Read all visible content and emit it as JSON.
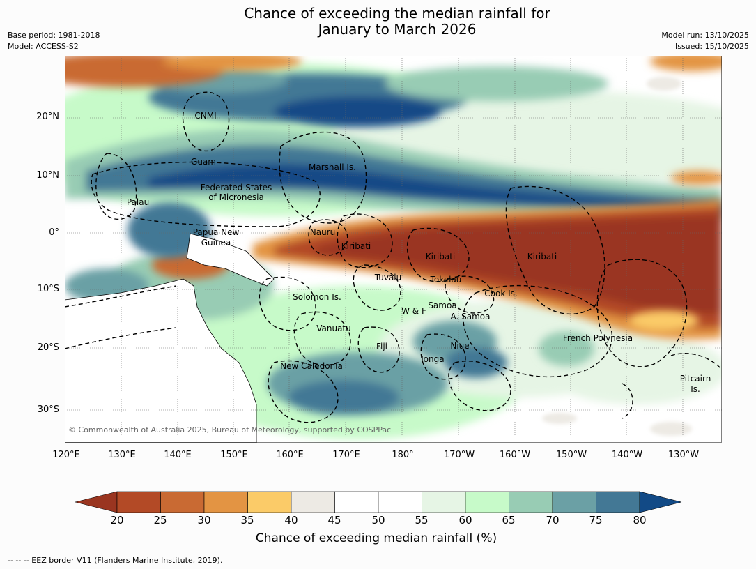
{
  "title": {
    "line1": "Chance of exceeding the median rainfall for",
    "line2": "January to March 2026"
  },
  "meta_left": {
    "base_period": "Base period: 1981-2018",
    "model": "Model: ACCESS-S2"
  },
  "meta_right": {
    "model_run": "Model run: 13/10/2025",
    "issued": "Issued: 15/10/2025"
  },
  "lat_labels": [
    "20°N",
    "10°N",
    "0°",
    "10°S",
    "20°S",
    "30°S"
  ],
  "lon_labels": [
    "120°E",
    "130°E",
    "140°E",
    "150°E",
    "160°E",
    "170°E",
    "180°",
    "170°W",
    "160°W",
    "150°W",
    "140°W",
    "130°W"
  ],
  "regions": [
    {
      "name": "CNMI"
    },
    {
      "name": "Guam"
    },
    {
      "name": "Marshall Is."
    },
    {
      "name": "Federated States"
    },
    {
      "name": "of Micronesia"
    },
    {
      "name": "Palau"
    },
    {
      "name": "Papua New"
    },
    {
      "name": "Guinea"
    },
    {
      "name": "Nauru"
    },
    {
      "name": "Kiribati"
    },
    {
      "name": "Kiribati"
    },
    {
      "name": "Kiribati"
    },
    {
      "name": "Tuvalu"
    },
    {
      "name": "Tokelau"
    },
    {
      "name": "Solomon Is."
    },
    {
      "name": "Cook Is."
    },
    {
      "name": "Samoa"
    },
    {
      "name": "W & F"
    },
    {
      "name": "A. Samoa"
    },
    {
      "name": "Vanuatu"
    },
    {
      "name": "Fiji"
    },
    {
      "name": "Niue"
    },
    {
      "name": "French Polynesia"
    },
    {
      "name": "Tonga"
    },
    {
      "name": "New Caledonia"
    },
    {
      "name": "Pitcairn"
    },
    {
      "name": "Is."
    }
  ],
  "copyright": "© Commonwealth of Australia 2025, Bureau of Meteorology, supported by COSPPac",
  "colorbar": {
    "ticks": [
      "20",
      "25",
      "30",
      "35",
      "40",
      "45",
      "50",
      "55",
      "60",
      "65",
      "70",
      "75",
      "80"
    ],
    "colors": [
      "#9a3520",
      "#b34a26",
      "#c96a33",
      "#e39443",
      "#fbcb68",
      "#edeae4",
      "#ffffff",
      "#ffffff",
      "#e6f5e5",
      "#c7fac9",
      "#98ccb4",
      "#6ba0a5",
      "#437895",
      "#124a86"
    ],
    "label": "Chance of exceeding median rainfall (%)"
  },
  "footer": "--  --  -- EEZ border V11 (Flanders Marine Institute, 2019)."
}
